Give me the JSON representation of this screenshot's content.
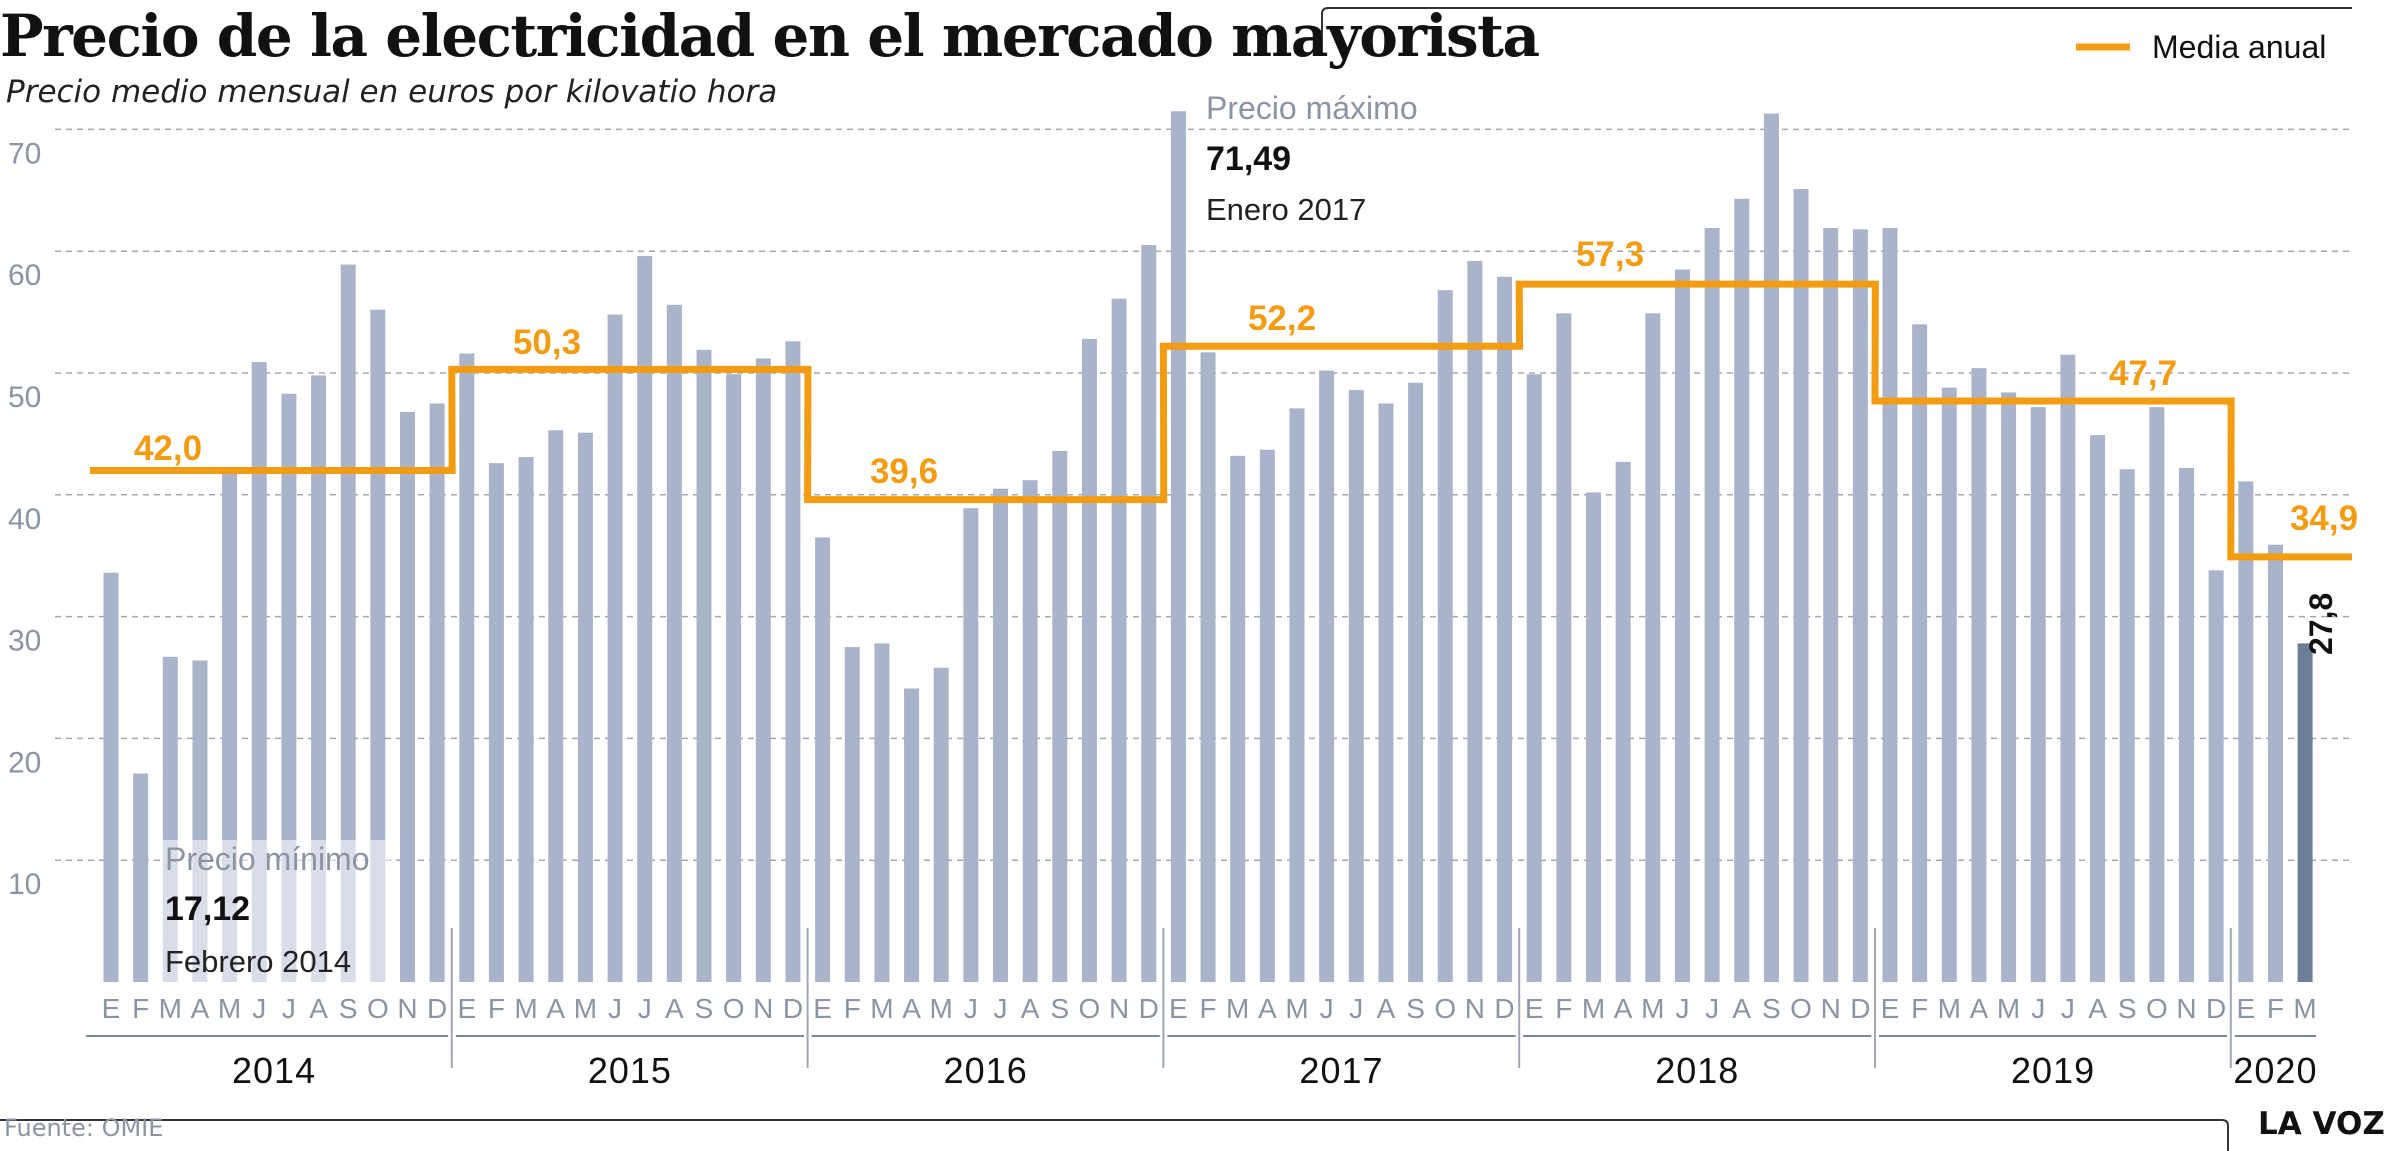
{
  "header": {
    "title": "Precio de la electricidad en el mercado mayorista",
    "subtitle": "Precio medio mensual en euros por kilovatio hora"
  },
  "footer": {
    "source": "Fuente: OMIE",
    "brand": "LA VOZ"
  },
  "colors": {
    "bar": "#a9b4cb",
    "bar_current": "#6b7f96",
    "annual_line": "#f39c12",
    "text_muted": "#8c94a3",
    "grid": "#a0a7b3"
  },
  "chart_data": {
    "type": "bar",
    "title": "Precio de la electricidad en el mercado mayorista",
    "subtitle": "Precio medio mensual en euros por kilovatio hora",
    "ylim": [
      0,
      75
    ],
    "yticks": [
      10,
      20,
      30,
      40,
      50,
      60,
      70
    ],
    "grid": true,
    "legend_position": "top-right",
    "month_labels": [
      "E",
      "F",
      "M",
      "A",
      "M",
      "J",
      "J",
      "A",
      "S",
      "O",
      "N",
      "D"
    ],
    "years": [
      {
        "label": "2014",
        "values": [
          33.6,
          17.12,
          26.7,
          26.4,
          41.8,
          50.9,
          48.3,
          49.8,
          58.9,
          55.2,
          46.8,
          47.5
        ]
      },
      {
        "label": "2015",
        "values": [
          51.6,
          42.6,
          43.1,
          45.3,
          45.1,
          54.8,
          59.6,
          55.6,
          51.9,
          49.9,
          51.2,
          52.6
        ]
      },
      {
        "label": "2016",
        "values": [
          36.5,
          27.5,
          27.8,
          24.1,
          25.8,
          38.9,
          40.5,
          41.2,
          43.6,
          52.8,
          56.1,
          60.5
        ]
      },
      {
        "label": "2017",
        "values": [
          71.49,
          51.7,
          43.2,
          43.7,
          47.1,
          50.2,
          48.6,
          47.5,
          49.2,
          56.8,
          59.2,
          57.9
        ]
      },
      {
        "label": "2018",
        "values": [
          49.9,
          54.9,
          40.2,
          42.7,
          54.9,
          58.5,
          61.9,
          64.3,
          71.3,
          65.1,
          61.9,
          61.8
        ]
      },
      {
        "label": "2019",
        "values": [
          61.9,
          54.0,
          48.8,
          50.4,
          48.4,
          47.2,
          51.5,
          44.9,
          42.1,
          47.2,
          42.2,
          33.8
        ]
      },
      {
        "label": "2020",
        "values": [
          41.1,
          35.9,
          27.8
        ]
      }
    ],
    "annual_average": {
      "name": "Media anual",
      "values": [
        {
          "year": "2014",
          "value": 42.0,
          "label": "42,0"
        },
        {
          "year": "2015",
          "value": 50.3,
          "label": "50,3"
        },
        {
          "year": "2016",
          "value": 39.6,
          "label": "39,6"
        },
        {
          "year": "2017",
          "value": 52.2,
          "label": "52,2"
        },
        {
          "year": "2018",
          "value": 57.3,
          "label": "57,3"
        },
        {
          "year": "2019",
          "value": 47.7,
          "label": "47,7"
        },
        {
          "year": "2020",
          "value": 34.9,
          "label": "34,9"
        }
      ]
    },
    "current_value_label": "27,8",
    "annotations": {
      "max": {
        "title": "Precio máximo",
        "value": "71,49",
        "date": "Enero 2017"
      },
      "min": {
        "title": "Precio mínimo",
        "value": "17,12",
        "date": "Febrero 2014"
      }
    }
  }
}
